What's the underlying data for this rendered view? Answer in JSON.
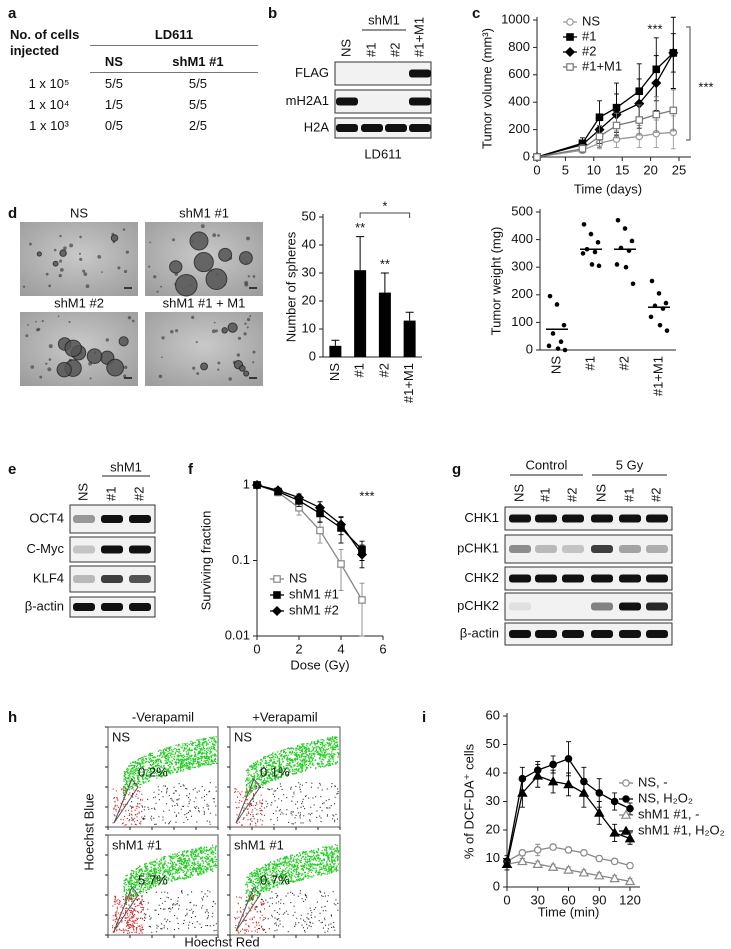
{
  "panel_labels": [
    "a",
    "b",
    "c",
    "d",
    "e",
    "f",
    "g",
    "h",
    "i"
  ],
  "table": {
    "row_header": "No. of cells injected",
    "group": "LD611",
    "columns": [
      "NS",
      "shM1 #1"
    ],
    "rows": [
      [
        "1 x 10⁵",
        "5/5",
        "5/5"
      ],
      [
        "1 x 10⁴",
        "1/5",
        "5/5"
      ],
      [
        "1 x 10³",
        "0/5",
        "2/5"
      ]
    ]
  },
  "blot_b": {
    "group": "shM1",
    "lanes": [
      "NS",
      "#1",
      "#2",
      "#1+M1"
    ],
    "rows": [
      "FLAG",
      "mH2A1",
      "H2A"
    ],
    "caption": "LD611"
  },
  "images_d": {
    "labels": [
      "NS",
      "shM1 #1",
      "shM1 #2",
      "shM1 #1 + M1"
    ]
  },
  "blot_e": {
    "group": "shM1",
    "lanes": [
      "NS",
      "#1",
      "#2"
    ],
    "rows": [
      "OCT4",
      "C-Myc",
      "KLF4",
      "β-actin"
    ]
  },
  "blot_g": {
    "groups": [
      "Control",
      "5 Gy"
    ],
    "lanes": [
      "NS",
      "#1",
      "#2",
      "NS",
      "#1",
      "#2"
    ],
    "rows": [
      "CHK1",
      "pCHK1",
      "CHK2",
      "pCHK2",
      "β-actin"
    ]
  },
  "flow_h": {
    "columns": [
      "-Verapamil",
      "+Verapamil"
    ],
    "ylabel": "Hoechst Blue",
    "xlabel": "Hoechst Red",
    "panels": [
      {
        "label": "NS",
        "gate": "0.2%"
      },
      {
        "label": "NS",
        "gate": "0.1%"
      },
      {
        "label": "shM1 #1",
        "gate": "5.7%"
      },
      {
        "label": "shM1 #1",
        "gate": "0.7%"
      }
    ]
  },
  "chart_data": [
    {
      "type": "line",
      "xlabel": "Time (days)",
      "ylabel": "Tumor volume (mm³)",
      "x": [
        0,
        8,
        11,
        14,
        18,
        21,
        24
      ],
      "xlim": [
        0,
        25
      ],
      "xticks": [
        0,
        5,
        10,
        15,
        20,
        25
      ],
      "ylim": [
        0,
        1000
      ],
      "yticks": [
        0,
        200,
        400,
        600,
        800,
        1000
      ],
      "legend": "top-left",
      "series": [
        {
          "name": "NS",
          "color": "#999999",
          "marker": "circle",
          "filled": false,
          "values": [
            0,
            50,
            100,
            130,
            150,
            170,
            180
          ],
          "errors": [
            0,
            20,
            40,
            60,
            80,
            100,
            120
          ]
        },
        {
          "name": "#1",
          "color": "#000000",
          "marker": "square",
          "filled": true,
          "values": [
            0,
            100,
            290,
            360,
            480,
            640,
            760
          ],
          "errors": [
            0,
            40,
            120,
            180,
            200,
            230,
            260
          ]
        },
        {
          "name": "#2",
          "color": "#000000",
          "marker": "diamond",
          "filled": true,
          "values": [
            0,
            90,
            200,
            310,
            390,
            540,
            760
          ],
          "errors": [
            0,
            30,
            100,
            150,
            180,
            200,
            140
          ]
        },
        {
          "name": "#1+M1",
          "color": "#777777",
          "marker": "square",
          "filled": false,
          "values": [
            0,
            60,
            150,
            230,
            270,
            310,
            340
          ],
          "errors": [
            0,
            30,
            80,
            90,
            110,
            130,
            150
          ]
        }
      ],
      "annotations": [
        "***",
        "***"
      ]
    },
    {
      "type": "bar",
      "ylabel": "Number of spheres",
      "categories": [
        "NS",
        "#1",
        "#2",
        "#1+M1"
      ],
      "values": [
        4,
        31,
        23,
        13
      ],
      "errors": [
        2,
        12,
        7,
        3
      ],
      "color": "#000000",
      "ylim": [
        0,
        50
      ],
      "yticks": [
        0,
        10,
        20,
        30,
        40,
        50
      ],
      "annotations": [
        "**",
        "**",
        "*"
      ]
    },
    {
      "type": "scatter",
      "ylabel": "Tumor weight (mg)",
      "categories": [
        "NS",
        "#1",
        "#2",
        "#1+M1"
      ],
      "values": [
        [
          195,
          165,
          90,
          60,
          30,
          15,
          5,
          0
        ],
        [
          455,
          420,
          390,
          365,
          355,
          350,
          310,
          305
        ],
        [
          470,
          440,
          395,
          370,
          360,
          310,
          300,
          240
        ],
        [
          250,
          205,
          170,
          160,
          150,
          120,
          90,
          70
        ]
      ],
      "means": [
        75,
        365,
        365,
        155
      ],
      "color": "#000000",
      "ylim": [
        0,
        500
      ],
      "yticks": [
        0,
        100,
        200,
        300,
        400,
        500
      ]
    },
    {
      "type": "line",
      "ylog": true,
      "xlabel": "Dose (Gy)",
      "ylabel": "Surviving fraction",
      "x": [
        0,
        1,
        2,
        3,
        4,
        5
      ],
      "xlim": [
        0,
        6
      ],
      "xticks": [
        0,
        2,
        4,
        6
      ],
      "ylim": [
        0.01,
        1
      ],
      "yticks": [
        0.01,
        0.1,
        1
      ],
      "legend": "bottom-left",
      "series": [
        {
          "name": "NS",
          "color": "#888888",
          "marker": "square",
          "filled": false,
          "values": [
            1,
            0.8,
            0.5,
            0.25,
            0.09,
            0.03
          ],
          "errors": [
            0,
            0.08,
            0.1,
            0.08,
            0.05,
            0.02
          ]
        },
        {
          "name": "shM1 #1",
          "color": "#000000",
          "marker": "square",
          "filled": true,
          "values": [
            1,
            0.82,
            0.62,
            0.42,
            0.27,
            0.14
          ],
          "errors": [
            0,
            0.05,
            0.1,
            0.1,
            0.1,
            0.04
          ]
        },
        {
          "name": "shM1 #2",
          "color": "#000000",
          "marker": "diamond",
          "filled": true,
          "values": [
            1,
            0.85,
            0.68,
            0.5,
            0.3,
            0.12
          ],
          "errors": [
            0,
            0.05,
            0.08,
            0.1,
            0.08,
            0.04
          ]
        }
      ],
      "annotations": [
        "***"
      ]
    },
    {
      "type": "line",
      "xlabel": "Time (min)",
      "ylabel": "% of DCF-DA⁺ cells",
      "x": [
        0,
        15,
        30,
        45,
        60,
        75,
        90,
        105,
        120
      ],
      "xlim": [
        0,
        120
      ],
      "xticks": [
        0,
        30,
        60,
        90,
        120
      ],
      "ylim": [
        0,
        60
      ],
      "yticks": [
        0,
        10,
        20,
        30,
        40,
        50,
        60
      ],
      "legend": "right",
      "series": [
        {
          "name": "NS, -",
          "color": "#888888",
          "marker": "circle",
          "filled": false,
          "values": [
            9,
            12,
            13,
            14,
            13,
            12,
            10,
            9,
            7.5
          ],
          "errors": [
            1,
            1,
            2,
            1,
            1,
            1,
            1,
            1,
            1
          ]
        },
        {
          "name": "NS, H₂O₂",
          "color": "#000000",
          "marker": "circle",
          "filled": true,
          "values": [
            9,
            38,
            41,
            43,
            45,
            37,
            33,
            30,
            27.5
          ],
          "errors": [
            2,
            4,
            3,
            3,
            6,
            5,
            5,
            3,
            2
          ]
        },
        {
          "name": "shM1 #1, -",
          "color": "#888888",
          "marker": "triangle",
          "filled": false,
          "values": [
            8,
            9,
            8,
            7,
            6,
            5,
            4,
            3,
            2
          ],
          "errors": [
            1,
            1,
            1,
            1,
            1,
            1,
            1,
            1,
            1
          ]
        },
        {
          "name": "shM1 #1, H₂O₂",
          "color": "#000000",
          "marker": "triangle",
          "filled": true,
          "values": [
            8,
            33,
            39,
            37,
            36,
            33,
            26,
            19,
            17
          ],
          "errors": [
            2,
            5,
            4,
            4,
            4,
            5,
            4,
            3,
            2
          ]
        }
      ]
    }
  ]
}
